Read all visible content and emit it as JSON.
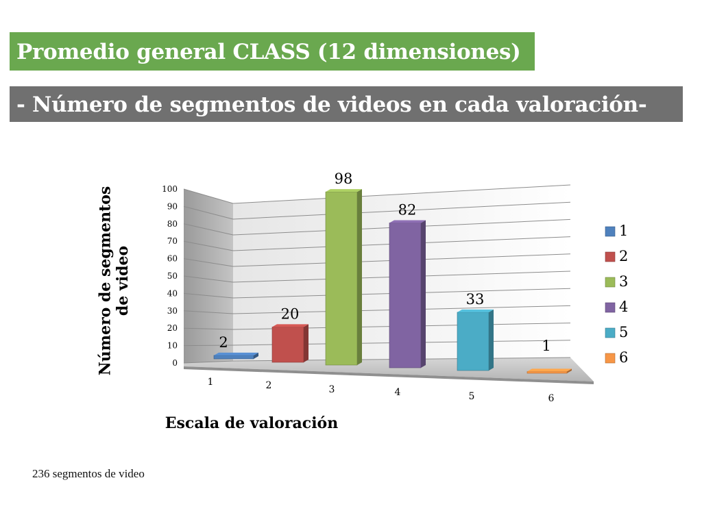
{
  "header": {
    "title": "Promedio general CLASS (12 dimensiones)",
    "subtitle": "- Número de segmentos de videos en cada valoración-"
  },
  "chart_data": {
    "type": "bar",
    "style": "3d-column",
    "categories": [
      "1",
      "2",
      "3",
      "4",
      "5",
      "6"
    ],
    "values": [
      2,
      20,
      98,
      82,
      33,
      1
    ],
    "data_labels": [
      "2",
      "20",
      "98",
      "82",
      "33",
      "1"
    ],
    "title": "",
    "xlabel": "Escala de valoración",
    "ylabel": "Número de segmentos de video",
    "ylim": [
      0,
      100
    ],
    "y_ticks": [
      "0",
      "10",
      "20",
      "30",
      "40",
      "50",
      "60",
      "70",
      "80",
      "90",
      "100"
    ],
    "grid": true,
    "legend": {
      "position": "right",
      "entries": [
        "1",
        "2",
        "3",
        "4",
        "5",
        "6"
      ]
    },
    "colors": [
      "#4f81bd",
      "#c0504d",
      "#9bbb59",
      "#8064a2",
      "#4bacc6",
      "#f79646"
    ]
  },
  "footer": {
    "note": "236 segmentos de video"
  }
}
